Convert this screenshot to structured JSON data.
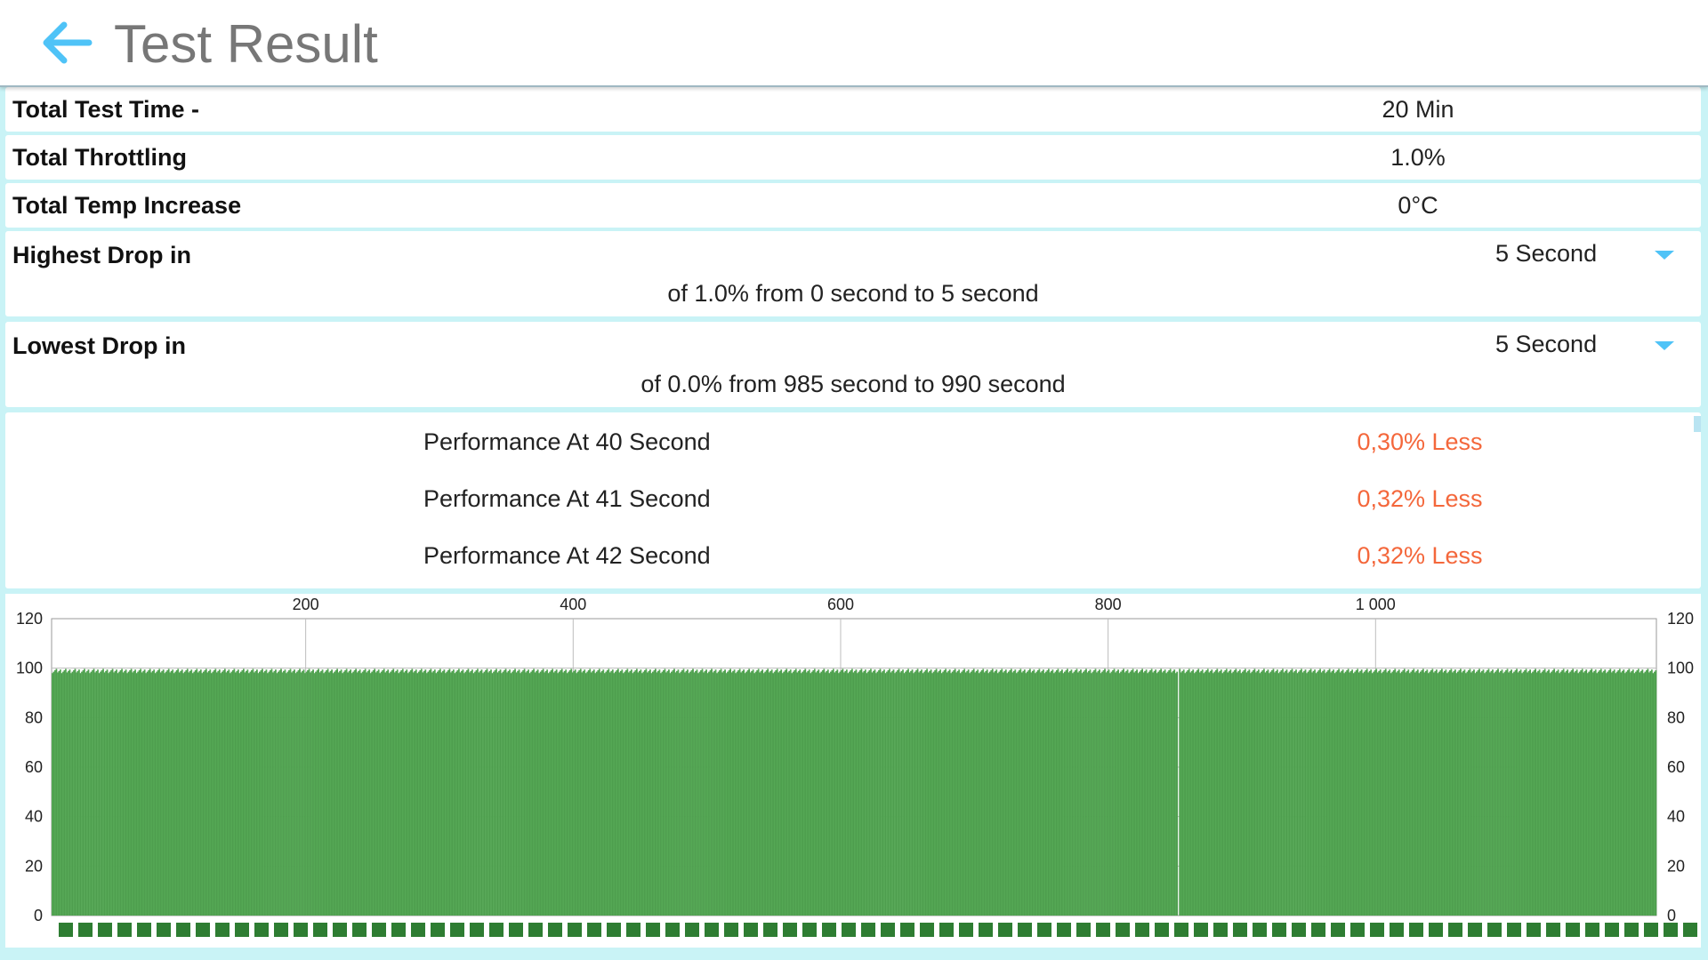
{
  "header": {
    "title": "Test Result",
    "back_icon": "arrow-left-icon",
    "accent_color": "#4fc3f7"
  },
  "summary": {
    "total_test_time": {
      "label": "Total Test Time -",
      "value": "20 Min"
    },
    "total_throttling": {
      "label": "Total Throttling",
      "value": "1.0%"
    },
    "total_temp_increase": {
      "label": "Total Temp Increase",
      "value": "0°C"
    }
  },
  "highest_drop": {
    "label": "Highest Drop in",
    "selected": "5 Second",
    "detail": "of 1.0% from 0 second to  5 second"
  },
  "lowest_drop": {
    "label": "Lowest Drop in",
    "selected": "5 Second",
    "detail": "of 0.0% from 985 second to  990 second"
  },
  "performance_list": [
    {
      "label": "Performance At 40 Second",
      "value": "0,30% Less"
    },
    {
      "label": "Performance At 41 Second",
      "value": "0,32% Less"
    },
    {
      "label": "Performance At 42 Second",
      "value": "0,32% Less"
    }
  ],
  "colors": {
    "background": "#c9f3f6",
    "less_value": "#f4673b",
    "bar": "#4ea24e",
    "legend": "#2e7d32"
  },
  "chart_data": {
    "type": "bar",
    "x_ticks": [
      "200",
      "400",
      "600",
      "800",
      "1 000"
    ],
    "x_tick_values": [
      200,
      400,
      600,
      800,
      1000
    ],
    "xlim": [
      10,
      1210
    ],
    "ylim": [
      0,
      120
    ],
    "y_ticks": [
      "120",
      "100",
      "80",
      "60",
      "40",
      "20",
      "0"
    ],
    "y_tick_values": [
      120,
      100,
      80,
      60,
      40,
      20,
      0
    ],
    "x_axis_position": "top",
    "y_axis": "left-and-right",
    "series": [
      {
        "values_description_note": "",
        "approx_value_range": [
          98,
          100
        ],
        "x_range": [
          10,
          1210
        ],
        "low_value_x": 852,
        "low_value": 0,
        "count": 1200
      }
    ],
    "grid": true
  }
}
